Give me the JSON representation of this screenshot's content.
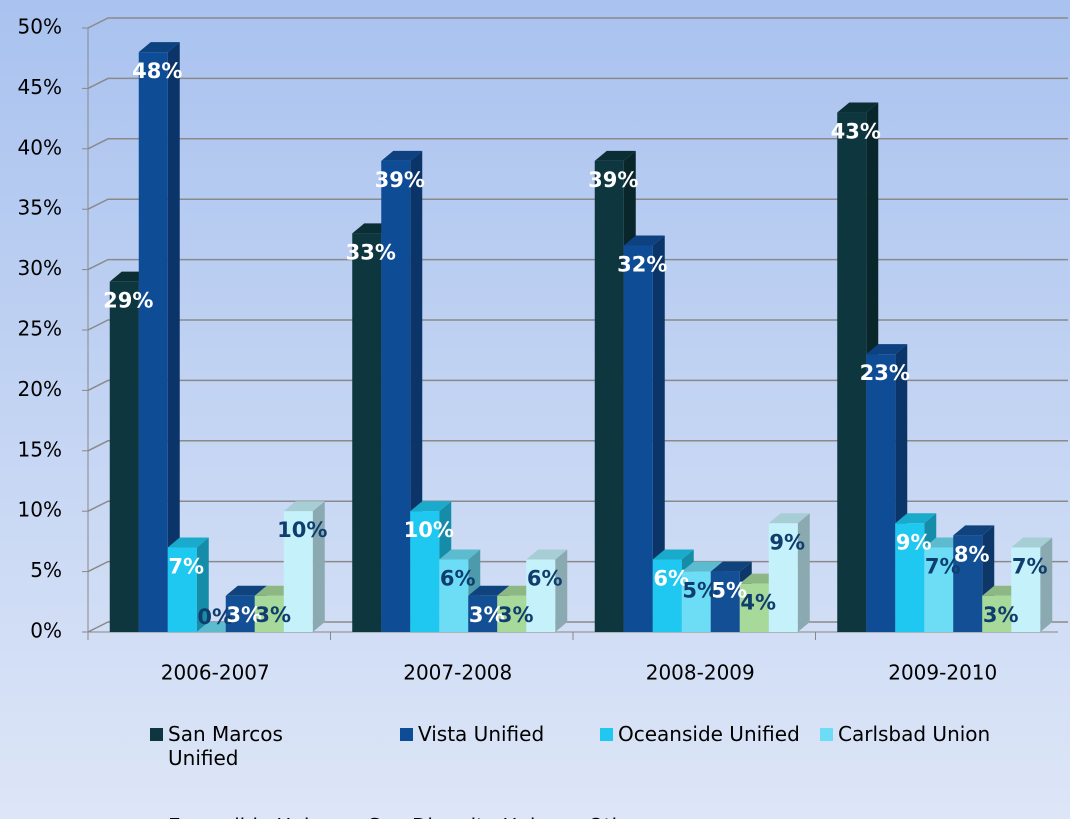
{
  "chart_data": {
    "type": "bar3d",
    "categories": [
      "2006-2007",
      "2007-2008",
      "2008-2009",
      "2009-2010"
    ],
    "series": [
      {
        "name": "San Marcos Unified",
        "color": "#0d363e",
        "values": [
          29,
          33,
          39,
          43
        ],
        "value_labels": [
          "29%",
          "33%",
          "39%",
          "43%"
        ]
      },
      {
        "name": "Vista Unified",
        "color": "#0f4c96",
        "values": [
          48,
          39,
          32,
          23
        ],
        "value_labels": [
          "48%",
          "39%",
          "32%",
          "23%"
        ]
      },
      {
        "name": "Oceanside Unified",
        "color": "#1ec8f0",
        "values": [
          7,
          10,
          6,
          9
        ],
        "value_labels": [
          "7%",
          "10%",
          "6%",
          "9%"
        ]
      },
      {
        "name": "Carlsbad Union",
        "color": "#6ddcf5",
        "values": [
          0,
          6,
          5,
          7
        ],
        "value_labels": [
          "0%",
          "6%",
          "5%",
          "7%"
        ]
      },
      {
        "name": "Escondido Union",
        "color": "#134f94",
        "values": [
          3,
          3,
          5,
          8
        ],
        "value_labels": [
          "3%",
          "3%",
          "5%",
          "8%"
        ]
      },
      {
        "name": "San Dieguito Union",
        "color": "#a6d99a",
        "values": [
          3,
          3,
          4,
          3
        ],
        "value_labels": [
          "3%",
          "3%",
          "4%",
          "3%"
        ]
      },
      {
        "name": "Other",
        "color": "#c5f1fb",
        "values": [
          10,
          6,
          9,
          7
        ],
        "value_labels": [
          "10%",
          "6%",
          "9%",
          "7%"
        ]
      }
    ],
    "ylim": [
      0,
      50
    ],
    "yticks": [
      {
        "value": 0,
        "label": "0%"
      },
      {
        "value": 5,
        "label": "5%"
      },
      {
        "value": 10,
        "label": "10%"
      },
      {
        "value": 15,
        "label": "15%"
      },
      {
        "value": 20,
        "label": "20%"
      },
      {
        "value": 25,
        "label": "25%"
      },
      {
        "value": 30,
        "label": "30%"
      },
      {
        "value": 35,
        "label": "35%"
      },
      {
        "value": 40,
        "label": "40%"
      },
      {
        "value": 45,
        "label": "45%"
      },
      {
        "value": 50,
        "label": "50%"
      }
    ],
    "grid": true,
    "legend": "bottom"
  }
}
